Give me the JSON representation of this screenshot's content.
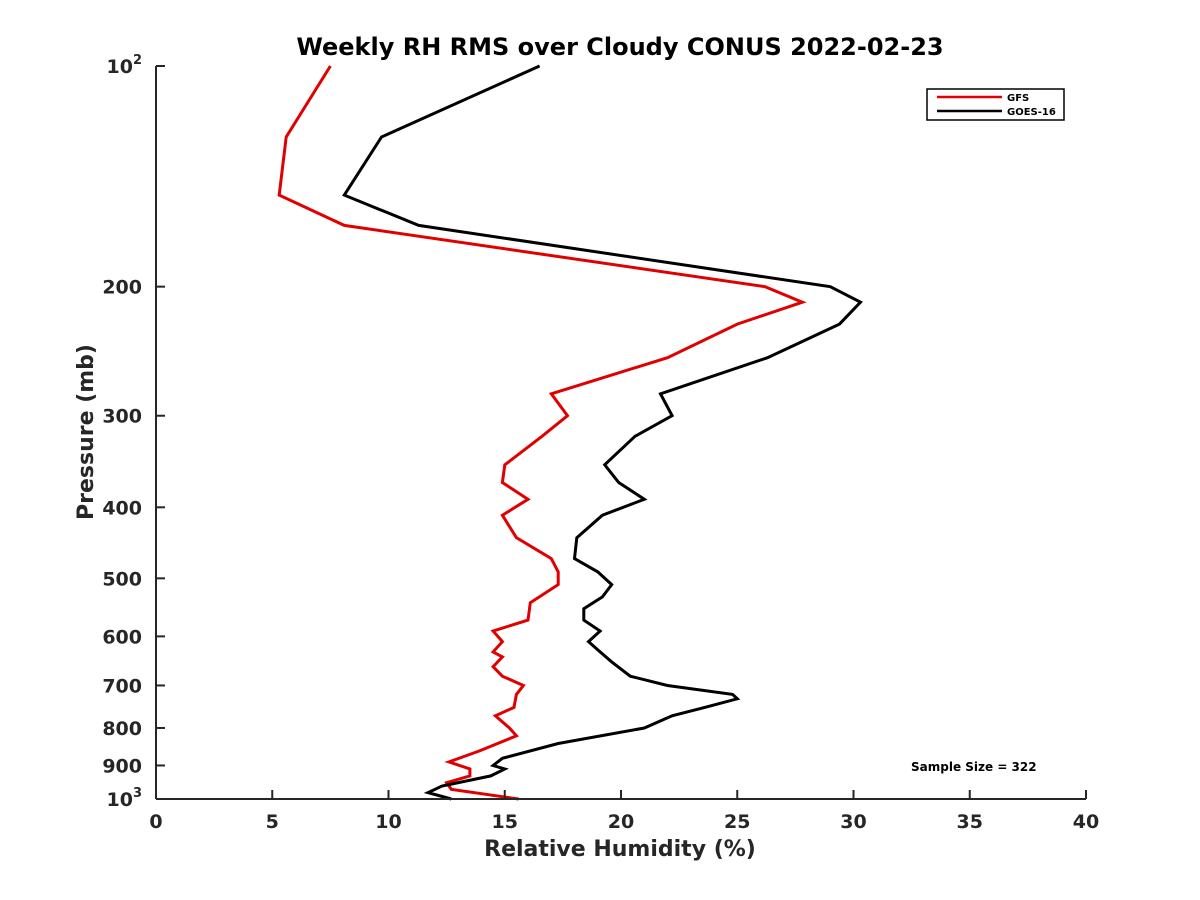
{
  "chart_data": {
    "type": "line",
    "title": "Weekly RH RMS over Cloudy CONUS 2022-02-23",
    "xlabel": "Relative Humidity (%)",
    "ylabel": "Pressure (mb)",
    "xlim": [
      0,
      40
    ],
    "ylim": [
      100,
      1000
    ],
    "yscale": "log",
    "y_reversed": true,
    "xticks": [
      0,
      5,
      10,
      15,
      20,
      25,
      30,
      35,
      40
    ],
    "xtick_labels": [
      "0",
      "5",
      "10",
      "15",
      "20",
      "25",
      "30",
      "35",
      "40"
    ],
    "yticks": [
      {
        "value": 100,
        "label": "10",
        "sup": "2"
      },
      {
        "value": 200,
        "label": "200",
        "sup": ""
      },
      {
        "value": 300,
        "label": "300",
        "sup": ""
      },
      {
        "value": 400,
        "label": "400",
        "sup": ""
      },
      {
        "value": 500,
        "label": "500",
        "sup": ""
      },
      {
        "value": 600,
        "label": "600",
        "sup": ""
      },
      {
        "value": 700,
        "label": "700",
        "sup": ""
      },
      {
        "value": 800,
        "label": "800",
        "sup": ""
      },
      {
        "value": 900,
        "label": "900",
        "sup": ""
      },
      {
        "value": 1000,
        "label": "10",
        "sup": "3"
      }
    ],
    "grid": false,
    "legend_position": "top-right",
    "annotation": "Sample Size = 322",
    "series": [
      {
        "name": "GFS",
        "color": "#e00000",
        "points": [
          [
            7.5,
            100
          ],
          [
            5.6,
            125
          ],
          [
            5.3,
            150
          ],
          [
            8.1,
            165
          ],
          [
            26.2,
            200
          ],
          [
            27.8,
            210
          ],
          [
            25.0,
            225
          ],
          [
            22.0,
            250
          ],
          [
            17.0,
            280
          ],
          [
            17.7,
            300
          ],
          [
            16.6,
            320
          ],
          [
            15.0,
            350
          ],
          [
            14.9,
            370
          ],
          [
            16.0,
            390
          ],
          [
            14.9,
            410
          ],
          [
            15.5,
            440
          ],
          [
            17.0,
            470
          ],
          [
            17.3,
            490
          ],
          [
            17.3,
            510
          ],
          [
            16.1,
            540
          ],
          [
            16.0,
            570
          ],
          [
            14.5,
            590
          ],
          [
            14.9,
            610
          ],
          [
            14.5,
            630
          ],
          [
            14.9,
            640
          ],
          [
            14.5,
            660
          ],
          [
            14.9,
            680
          ],
          [
            15.8,
            700
          ],
          [
            15.5,
            720
          ],
          [
            15.4,
            750
          ],
          [
            14.6,
            770
          ],
          [
            15.2,
            800
          ],
          [
            15.5,
            820
          ],
          [
            13.9,
            860
          ],
          [
            12.6,
            890
          ],
          [
            13.5,
            910
          ],
          [
            13.5,
            930
          ],
          [
            12.5,
            950
          ],
          [
            12.7,
            970
          ],
          [
            15.6,
            1000
          ]
        ]
      },
      {
        "name": "GOES-16",
        "color": "#000000",
        "points": [
          [
            16.5,
            100
          ],
          [
            9.7,
            125
          ],
          [
            8.1,
            150
          ],
          [
            11.3,
            165
          ],
          [
            29.0,
            200
          ],
          [
            30.3,
            210
          ],
          [
            29.4,
            225
          ],
          [
            26.3,
            250
          ],
          [
            21.7,
            280
          ],
          [
            22.2,
            300
          ],
          [
            20.6,
            320
          ],
          [
            19.3,
            350
          ],
          [
            19.9,
            370
          ],
          [
            21.0,
            390
          ],
          [
            19.2,
            410
          ],
          [
            18.1,
            440
          ],
          [
            18.0,
            470
          ],
          [
            19.0,
            490
          ],
          [
            19.6,
            510
          ],
          [
            19.2,
            530
          ],
          [
            18.4,
            550
          ],
          [
            18.4,
            570
          ],
          [
            19.1,
            590
          ],
          [
            18.6,
            610
          ],
          [
            19.1,
            630
          ],
          [
            19.6,
            650
          ],
          [
            20.4,
            680
          ],
          [
            22.0,
            700
          ],
          [
            24.8,
            720
          ],
          [
            25.0,
            730
          ],
          [
            23.6,
            750
          ],
          [
            22.2,
            770
          ],
          [
            21.0,
            800
          ],
          [
            17.3,
            840
          ],
          [
            14.9,
            880
          ],
          [
            14.5,
            900
          ],
          [
            15.0,
            910
          ],
          [
            14.4,
            930
          ],
          [
            12.3,
            960
          ],
          [
            11.7,
            980
          ],
          [
            12.7,
            1000
          ]
        ]
      }
    ]
  }
}
